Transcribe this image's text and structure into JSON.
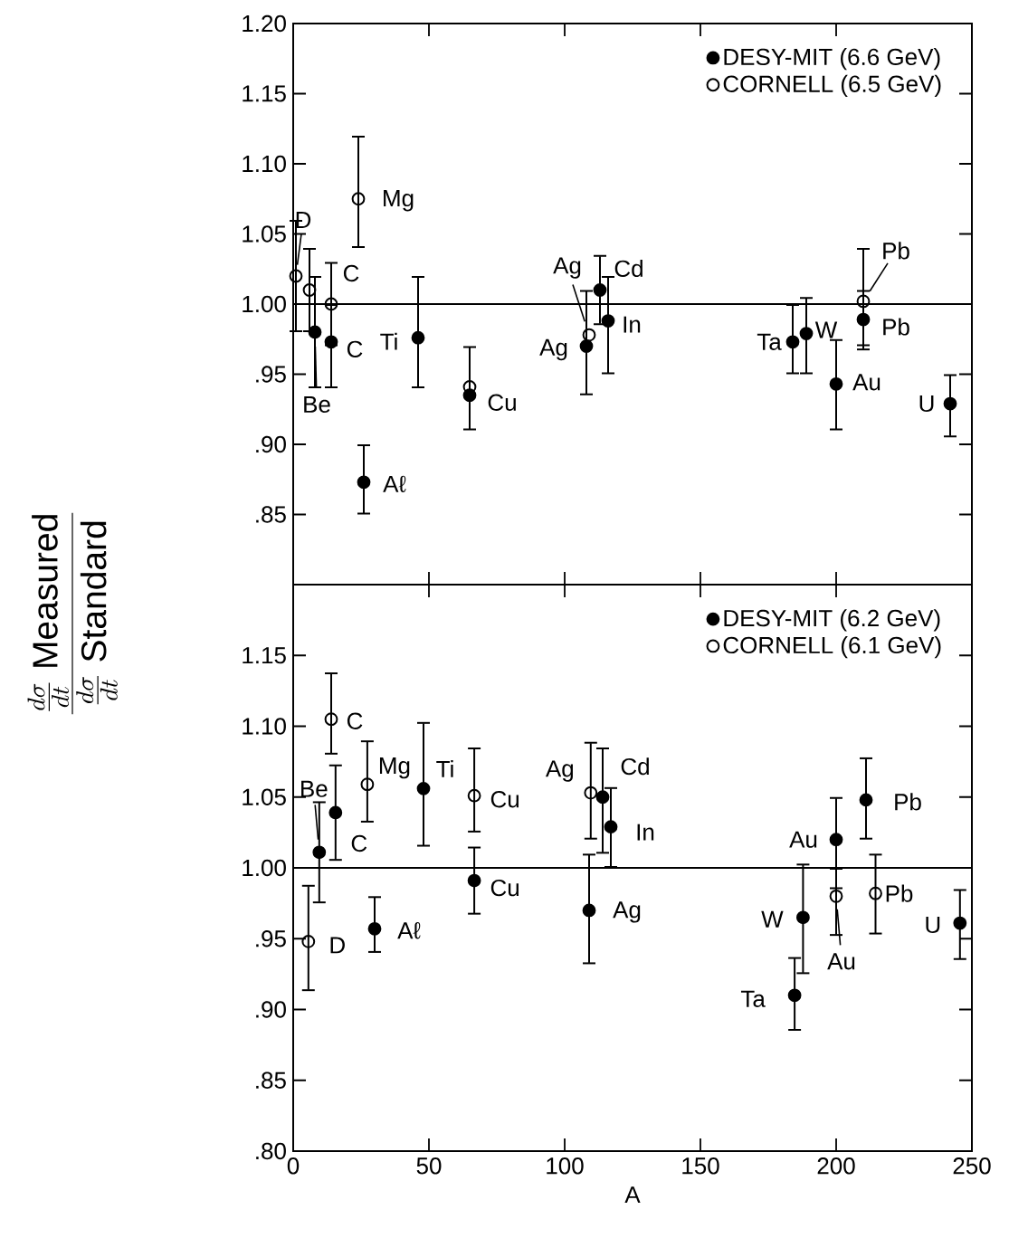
{
  "chart_data": [
    {
      "type": "scatter",
      "ylabel": "\\frac{\\frac{d\\sigma}{dt}\\ \\mathrm{Measured}}{\\frac{d\\sigma}{dt}\\ \\mathrm{Standard}}",
      "marker": "circle",
      "legend": "top right",
      "tick_labels": "y",
      "xlim": [
        0,
        250
      ],
      "xticks": [
        {
          "value": 0,
          "label": null
        },
        {
          "value": 50,
          "label": null
        },
        {
          "value": 100,
          "label": null
        },
        {
          "value": 150,
          "label": null
        },
        {
          "value": 200,
          "label": null
        },
        {
          "value": 250,
          "label": null
        }
      ],
      "ylim": [
        0.8,
        1.2
      ],
      "yticks": [
        {
          "value": 0.85,
          "label": ".85"
        },
        {
          "value": 0.9,
          "label": ".90"
        },
        {
          "value": 0.95,
          "label": ".95"
        },
        {
          "value": 1.0,
          "label": "1.00"
        },
        {
          "value": 1.05,
          "label": "1.05"
        },
        {
          "value": 1.1,
          "label": "1.10"
        },
        {
          "value": 1.15,
          "label": "1.15"
        },
        {
          "value": 1.2,
          "label": "1.20"
        }
      ],
      "ref_lines": [
        {
          "axis": "y",
          "value": 1.0
        }
      ],
      "series": [
        {
          "name": "DESY-MIT (6.6 GeV)",
          "color": "#000000",
          "x": [
            8,
            14,
            26,
            46,
            65,
            108,
            113,
            116,
            184,
            189,
            200,
            210,
            242
          ],
          "values": [
            0.98,
            0.973,
            0.873,
            0.976,
            0.935,
            0.97,
            1.01,
            0.988,
            0.973,
            0.979,
            0.943,
            0.989,
            0.929
          ],
          "errors": [
            [
              0.94,
              1.02
            ],
            [
              0.94,
              1.0
            ],
            [
              0.85,
              0.9
            ],
            [
              0.94,
              1.02
            ],
            [
              0.91,
              0.97
            ],
            [
              0.935,
              1.01
            ],
            [
              0.985,
              1.035
            ],
            [
              0.95,
              1.02
            ],
            [
              0.95,
              1.0
            ],
            [
              0.95,
              1.005
            ],
            [
              0.91,
              0.975
            ],
            [
              0.967,
              1.01
            ],
            [
              0.905,
              0.95
            ]
          ]
        },
        {
          "name": "CORNELL (6.5 GeV)",
          "color": "#000000",
          "x": [
            1,
            6,
            14,
            24,
            65,
            109,
            210
          ],
          "values": [
            1.02,
            1.01,
            1.0,
            1.075,
            0.941,
            0.978,
            1.002
          ],
          "errors": [
            [
              0.98,
              1.06
            ],
            [
              0.98,
              1.04
            ],
            [
              0.97,
              1.03
            ],
            [
              1.04,
              1.12
            ],
            null,
            null,
            [
              0.97,
              1.04
            ]
          ]
        }
      ],
      "annotations": [
        {
          "text": "D",
          "x": 1,
          "y": 1.02
        },
        {
          "text": "C",
          "x": 14,
          "y": 1.0
        },
        {
          "text": "C",
          "x": 14,
          "y": 0.973
        },
        {
          "text": "Be",
          "x": 8,
          "y": 0.98
        },
        {
          "text": "Mg",
          "x": 24,
          "y": 1.075
        },
        {
          "text": "Aℓ",
          "x": 26,
          "y": 0.873
        },
        {
          "text": "Ti",
          "x": 46,
          "y": 0.976
        },
        {
          "text": "Cu",
          "x": 65,
          "y": 0.935
        },
        {
          "text": "Ag",
          "x": 109,
          "y": 0.978
        },
        {
          "text": "Cd",
          "x": 113,
          "y": 1.01
        },
        {
          "text": "Ag",
          "x": 108,
          "y": 0.97
        },
        {
          "text": "In",
          "x": 116,
          "y": 0.988
        },
        {
          "text": "Ta",
          "x": 184,
          "y": 0.973
        },
        {
          "text": "W",
          "x": 189,
          "y": 0.979
        },
        {
          "text": "Au",
          "x": 200,
          "y": 0.943
        },
        {
          "text": "Pb",
          "x": 210,
          "y": 1.002
        },
        {
          "text": "Pb",
          "x": 210,
          "y": 0.989
        },
        {
          "text": "U",
          "x": 242,
          "y": 0.929
        }
      ]
    },
    {
      "type": "scatter",
      "xlabel": "A",
      "marker": "circle",
      "legend": "top right",
      "xlim": [
        0,
        250
      ],
      "xticks": [
        0,
        50,
        100,
        150,
        200,
        250
      ],
      "ylim": [
        0.8,
        1.2
      ],
      "yticks": [
        {
          "value": 0.8,
          "label": ".80"
        },
        {
          "value": 0.85,
          "label": ".85"
        },
        {
          "value": 0.9,
          "label": ".90"
        },
        {
          "value": 0.95,
          "label": ".95"
        },
        {
          "value": 1.0,
          "label": "1.00"
        },
        {
          "value": 1.05,
          "label": "1.05"
        },
        {
          "value": 1.1,
          "label": "1.10"
        },
        {
          "value": 1.15,
          "label": "1.15"
        },
        {
          "value": 1.2,
          "label": null
        }
      ],
      "ref_lines": [
        {
          "axis": "y",
          "value": 1.0
        }
      ],
      "series": [
        {
          "name": "DESY-MIT (6.2 GeV)",
          "color": "#000000",
          "x": [
            9.6,
            15.6,
            30,
            48,
            66.7,
            114,
            117,
            109,
            184.7,
            187.8,
            200,
            211,
            245.6
          ],
          "values": [
            1.011,
            1.039,
            0.957,
            1.056,
            0.991,
            1.05,
            1.029,
            0.97,
            0.91,
            0.965,
            1.02,
            1.048,
            0.961
          ],
          "errors": [
            [
              0.975,
              1.047
            ],
            [
              1.005,
              1.073
            ],
            [
              0.94,
              0.98
            ],
            [
              1.015,
              1.103
            ],
            [
              0.967,
              1.015
            ],
            [
              1.01,
              1.085
            ],
            [
              1.0,
              1.057
            ],
            [
              0.932,
              1.01
            ],
            [
              0.885,
              0.937
            ],
            [
              0.925,
              1.003
            ],
            [
              0.985,
              1.05
            ],
            [
              1.02,
              1.078
            ],
            [
              0.935,
              0.985
            ]
          ]
        },
        {
          "name": "CORNELL (6.1 GeV)",
          "color": "#000000",
          "x": [
            5.6,
            14,
            27.3,
            66.7,
            109.6,
            200,
            214.5
          ],
          "values": [
            0.948,
            1.105,
            1.059,
            1.051,
            1.053,
            0.98,
            0.982
          ],
          "errors": [
            [
              0.913,
              0.988
            ],
            [
              1.08,
              1.138
            ],
            [
              1.032,
              1.09
            ],
            [
              1.025,
              1.085
            ],
            [
              1.02,
              1.089
            ],
            [
              0.952,
              1.0
            ],
            [
              0.953,
              1.01
            ]
          ]
        }
      ],
      "annotations": [
        {
          "text": "C",
          "x": 14,
          "y": 1.105
        },
        {
          "text": "Mg",
          "x": 27.3,
          "y": 1.059
        },
        {
          "text": "Ti",
          "x": 48,
          "y": 1.056
        },
        {
          "text": "Be",
          "x": 9.6,
          "y": 1.011
        },
        {
          "text": "C",
          "x": 15.6,
          "y": 1.039
        },
        {
          "text": "Cu",
          "x": 66.7,
          "y": 1.051
        },
        {
          "text": "Cu",
          "x": 66.7,
          "y": 0.991
        },
        {
          "text": "D",
          "x": 5.6,
          "y": 0.948
        },
        {
          "text": "Aℓ",
          "x": 30,
          "y": 0.957
        },
        {
          "text": "Ag",
          "x": 109.6,
          "y": 1.053
        },
        {
          "text": "Cd",
          "x": 114,
          "y": 1.05
        },
        {
          "text": "In",
          "x": 117,
          "y": 1.029
        },
        {
          "text": "Ag",
          "x": 109,
          "y": 0.97
        },
        {
          "text": "Au",
          "x": 200,
          "y": 1.02
        },
        {
          "text": "W",
          "x": 187.8,
          "y": 0.965
        },
        {
          "text": "Au",
          "x": 200,
          "y": 0.98
        },
        {
          "text": "Pb",
          "x": 211,
          "y": 1.048
        },
        {
          "text": "Pb",
          "x": 214.5,
          "y": 0.982
        },
        {
          "text": "Ta",
          "x": 184.7,
          "y": 0.91
        },
        {
          "text": "U",
          "x": 245.6,
          "y": 0.961
        }
      ]
    }
  ]
}
